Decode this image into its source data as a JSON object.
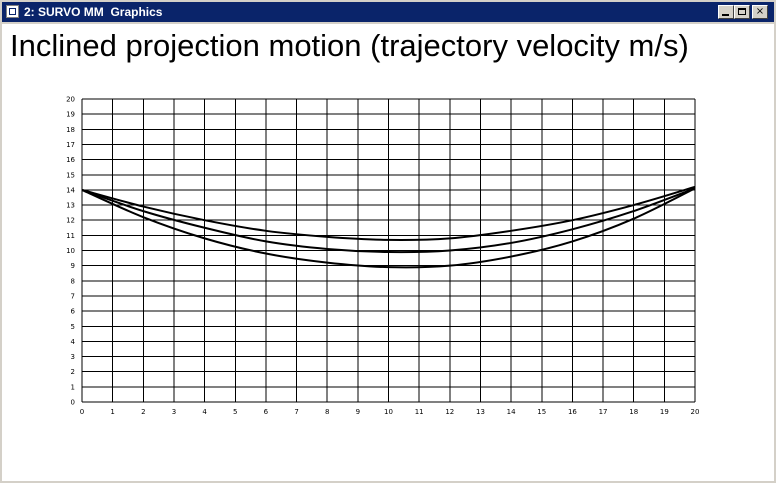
{
  "window": {
    "title": "2: SURVO MM  Graphics",
    "controls": {
      "minimize": "_",
      "maximize": "□",
      "close": "×"
    }
  },
  "chart_data": {
    "type": "line",
    "title": "Inclined projection motion (trajectory velocity m/s)",
    "xlabel": "",
    "ylabel": "",
    "xlim": [
      0,
      20
    ],
    "ylim": [
      0,
      20
    ],
    "xticks": [
      "0",
      "1",
      "2",
      "3",
      "4",
      "5",
      "6",
      "7",
      "8",
      "9",
      "10",
      "11",
      "12",
      "13",
      "14",
      "15",
      "16",
      "17",
      "18",
      "19",
      "20"
    ],
    "yticks": [
      "0",
      "1",
      "2",
      "3",
      "4",
      "5",
      "6",
      "7",
      "8",
      "9",
      "10",
      "11",
      "12",
      "13",
      "14",
      "15",
      "16",
      "17",
      "18",
      "19",
      "20"
    ],
    "grid": true,
    "series": [
      {
        "x": [
          0,
          2,
          4,
          6,
          8,
          10,
          12,
          14,
          16,
          18,
          20
        ],
        "y": [
          14.0,
          12.9,
          12.0,
          11.3,
          10.9,
          10.7,
          10.8,
          11.3,
          12.0,
          13.0,
          14.2
        ]
      },
      {
        "x": [
          0,
          2,
          4,
          6,
          8,
          10,
          12,
          14,
          16,
          18,
          20
        ],
        "y": [
          14.0,
          12.6,
          11.5,
          10.6,
          10.1,
          9.9,
          10.0,
          10.5,
          11.4,
          12.6,
          14.1
        ]
      },
      {
        "x": [
          0,
          2,
          4,
          6,
          8,
          10,
          12,
          14,
          16,
          18,
          20
        ],
        "y": [
          14.0,
          12.2,
          10.8,
          9.8,
          9.2,
          8.9,
          9.0,
          9.6,
          10.6,
          12.1,
          14.1
        ]
      }
    ]
  }
}
